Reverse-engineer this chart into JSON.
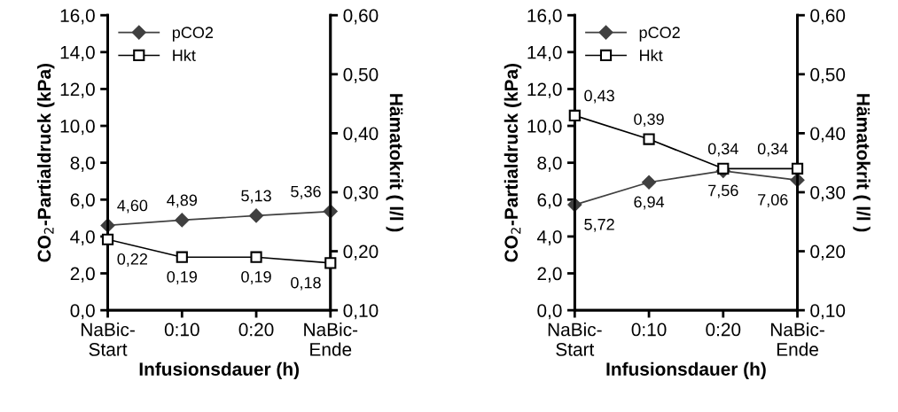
{
  "chart_data": [
    {
      "type": "line",
      "xlabel": "Infusionsdauer (h)",
      "ylabel": "CO$_{2}$-Partialdruck (kPa)",
      "y2label": "Hämatokrit ( l/l )",
      "categories": [
        "NaBic-\nStart",
        "0:10",
        "0:20",
        "NaBic-\nEnde"
      ],
      "series": [
        {
          "name": "pCO2",
          "color": "#404040",
          "marker": "diamond",
          "values": [
            4.6,
            4.89,
            5.13,
            5.36
          ],
          "value_labels": [
            "4,60",
            "4,89",
            "5,13",
            "5,36"
          ]
        },
        {
          "name": "Hkt",
          "color": "#000000",
          "marker": "square",
          "axis": "y2",
          "values": [
            0.22,
            0.19,
            0.19,
            0.18
          ],
          "value_labels": [
            "0,22",
            "0,19",
            "0,19",
            "0,18"
          ]
        }
      ],
      "ylim": [
        0,
        16
      ],
      "yticks": [
        {
          "value": 0,
          "label": "0,0"
        },
        {
          "value": 2,
          "label": "2,0"
        },
        {
          "value": 4,
          "label": "4,0"
        },
        {
          "value": 6,
          "label": "6,0"
        },
        {
          "value": 8,
          "label": "8,0"
        },
        {
          "value": 10,
          "label": "10,0"
        },
        {
          "value": 12,
          "label": "12,0"
        },
        {
          "value": 14,
          "label": "14,0"
        },
        {
          "value": 16,
          "label": "16,0"
        }
      ],
      "y2lim": [
        0.1,
        0.6
      ],
      "y2ticks": [
        {
          "value": 0.1,
          "label": "0,10"
        },
        {
          "value": 0.2,
          "label": "0,20"
        },
        {
          "value": 0.3,
          "label": "0,30"
        },
        {
          "value": 0.4,
          "label": "0,40"
        },
        {
          "value": 0.5,
          "label": "0,50"
        },
        {
          "value": 0.6,
          "label": "0,60"
        }
      ],
      "legend": "top left",
      "grid": false
    },
    {
      "type": "line",
      "xlabel": "Infusionsdauer (h)",
      "ylabel": "CO$_{2}$-Partialdruck (kPa)",
      "y2label": "Hämatokrit ( l/l )",
      "categories": [
        "NaBic-\nStart",
        "0:10",
        "0:20",
        "NaBic-\nEnde"
      ],
      "series": [
        {
          "name": "pCO2",
          "color": "#404040",
          "marker": "diamond",
          "values": [
            5.72,
            6.94,
            7.56,
            7.06
          ],
          "value_labels": [
            "5,72",
            "6,94",
            "7,56",
            "7,06"
          ]
        },
        {
          "name": "Hkt",
          "color": "#000000",
          "marker": "square",
          "axis": "y2",
          "values": [
            0.43,
            0.39,
            0.34,
            0.34
          ],
          "value_labels": [
            "0,43",
            "0,39",
            "0,34",
            "0,34"
          ]
        }
      ],
      "ylim": [
        0,
        16
      ],
      "yticks": [
        {
          "value": 0,
          "label": "0,0"
        },
        {
          "value": 2,
          "label": "2,0"
        },
        {
          "value": 4,
          "label": "4,0"
        },
        {
          "value": 6,
          "label": "6,0"
        },
        {
          "value": 8,
          "label": "8,0"
        },
        {
          "value": 10,
          "label": "10,0"
        },
        {
          "value": 12,
          "label": "12,0"
        },
        {
          "value": 14,
          "label": "14,0"
        },
        {
          "value": 16,
          "label": "16,0"
        }
      ],
      "y2lim": [
        0.1,
        0.6
      ],
      "y2ticks": [
        {
          "value": 0.1,
          "label": "0,10"
        },
        {
          "value": 0.2,
          "label": "0,20"
        },
        {
          "value": 0.3,
          "label": "0,30"
        },
        {
          "value": 0.4,
          "label": "0,40"
        },
        {
          "value": 0.5,
          "label": "0,50"
        },
        {
          "value": 0.6,
          "label": "0,60"
        }
      ],
      "legend": "top left",
      "grid": false
    }
  ]
}
